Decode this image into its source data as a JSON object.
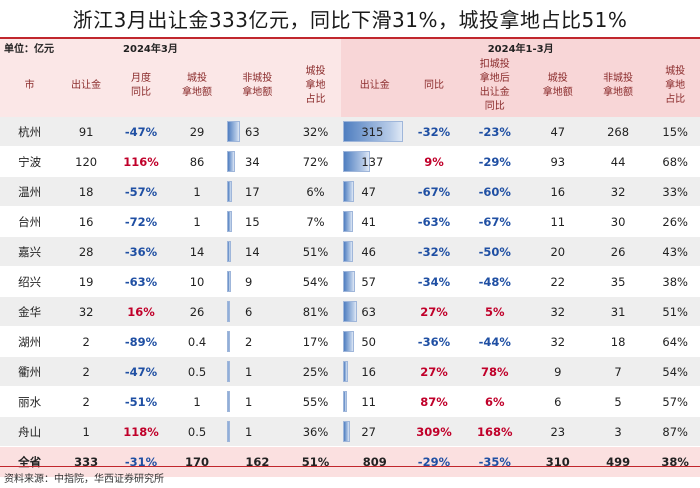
{
  "title": "浙江3月出让金333亿元，同比下滑31%，城投拿地占比51%",
  "unit_label": "单位：亿元",
  "period_march": "2024年3月",
  "period_q1": "2024年1-3月",
  "headers": [
    "市",
    "出让金",
    "月度\n同比",
    "城投\n拿地额",
    "非城投\n拿地额",
    "城投\n拿地\n占比",
    "出让金",
    "同比",
    "扣城投\n拿地后\n出让金\n同比",
    "城投\n拿地额",
    "非城投\n拿地额",
    "城投\n拿地\n占比"
  ],
  "bar_max": 315,
  "rows": [
    {
      "city": "杭州",
      "m_amt": "91",
      "m_yoy": "-47%",
      "m_ct": "29",
      "m_nct": "63",
      "m_share": "32%",
      "q_amt": "315",
      "q_yoy": "-32%",
      "q_ex_yoy": "-23%",
      "q_ct": "47",
      "q_nct": "268",
      "q_share": "15%",
      "m_nct_val": 63,
      "q_amt_val": 315
    },
    {
      "city": "宁波",
      "m_amt": "120",
      "m_yoy": "116%",
      "m_ct": "86",
      "m_nct": "34",
      "m_share": "72%",
      "q_amt": "137",
      "q_yoy": "9%",
      "q_ex_yoy": "-29%",
      "q_ct": "93",
      "q_nct": "44",
      "q_share": "68%",
      "m_nct_val": 34,
      "q_amt_val": 137
    },
    {
      "city": "温州",
      "m_amt": "18",
      "m_yoy": "-57%",
      "m_ct": "1",
      "m_nct": "17",
      "m_share": "6%",
      "q_amt": "47",
      "q_yoy": "-67%",
      "q_ex_yoy": "-60%",
      "q_ct": "16",
      "q_nct": "32",
      "q_share": "33%",
      "m_nct_val": 17,
      "q_amt_val": 47
    },
    {
      "city": "台州",
      "m_amt": "16",
      "m_yoy": "-72%",
      "m_ct": "1",
      "m_nct": "15",
      "m_share": "7%",
      "q_amt": "41",
      "q_yoy": "-63%",
      "q_ex_yoy": "-67%",
      "q_ct": "11",
      "q_nct": "30",
      "q_share": "26%",
      "m_nct_val": 15,
      "q_amt_val": 41
    },
    {
      "city": "嘉兴",
      "m_amt": "28",
      "m_yoy": "-36%",
      "m_ct": "14",
      "m_nct": "14",
      "m_share": "51%",
      "q_amt": "46",
      "q_yoy": "-32%",
      "q_ex_yoy": "-50%",
      "q_ct": "20",
      "q_nct": "26",
      "q_share": "43%",
      "m_nct_val": 14,
      "q_amt_val": 46
    },
    {
      "city": "绍兴",
      "m_amt": "19",
      "m_yoy": "-63%",
      "m_ct": "10",
      "m_nct": "9",
      "m_share": "54%",
      "q_amt": "57",
      "q_yoy": "-34%",
      "q_ex_yoy": "-48%",
      "q_ct": "22",
      "q_nct": "35",
      "q_share": "38%",
      "m_nct_val": 9,
      "q_amt_val": 57
    },
    {
      "city": "金华",
      "m_amt": "32",
      "m_yoy": "16%",
      "m_ct": "26",
      "m_nct": "6",
      "m_share": "81%",
      "q_amt": "63",
      "q_yoy": "27%",
      "q_ex_yoy": "5%",
      "q_ct": "32",
      "q_nct": "31",
      "q_share": "51%",
      "m_nct_val": 6,
      "q_amt_val": 63
    },
    {
      "city": "湖州",
      "m_amt": "2",
      "m_yoy": "-89%",
      "m_ct": "0.4",
      "m_nct": "2",
      "m_share": "17%",
      "q_amt": "50",
      "q_yoy": "-36%",
      "q_ex_yoy": "-44%",
      "q_ct": "32",
      "q_nct": "18",
      "q_share": "64%",
      "m_nct_val": 2,
      "q_amt_val": 50
    },
    {
      "city": "衢州",
      "m_amt": "2",
      "m_yoy": "-47%",
      "m_ct": "0.5",
      "m_nct": "1",
      "m_share": "25%",
      "q_amt": "16",
      "q_yoy": "27%",
      "q_ex_yoy": "78%",
      "q_ct": "9",
      "q_nct": "7",
      "q_share": "54%",
      "m_nct_val": 1,
      "q_amt_val": 16
    },
    {
      "city": "丽水",
      "m_amt": "2",
      "m_yoy": "-51%",
      "m_ct": "1",
      "m_nct": "1",
      "m_share": "55%",
      "q_amt": "11",
      "q_yoy": "87%",
      "q_ex_yoy": "6%",
      "q_ct": "6",
      "q_nct": "5",
      "q_share": "57%",
      "m_nct_val": 1,
      "q_amt_val": 11
    },
    {
      "city": "舟山",
      "m_amt": "1",
      "m_yoy": "118%",
      "m_ct": "0.5",
      "m_nct": "1",
      "m_share": "36%",
      "q_amt": "27",
      "q_yoy": "309%",
      "q_ex_yoy": "168%",
      "q_ct": "23",
      "q_nct": "3",
      "q_share": "87%",
      "m_nct_val": 1,
      "q_amt_val": 27
    }
  ],
  "total": {
    "city": "全省",
    "m_amt": "333",
    "m_yoy": "-31%",
    "m_ct": "170",
    "m_nct": "162",
    "m_share": "51%",
    "q_amt": "809",
    "q_yoy": "-29%",
    "q_ex_yoy": "-35%",
    "q_ct": "310",
    "q_nct": "499",
    "q_share": "38%"
  },
  "source": "资料来源：中指院，华西证券研究所",
  "colors": {
    "rule": "#c1272d",
    "positive": "#c0002a",
    "negative": "#1f4fa3",
    "header_text": "#8a2b2b",
    "bar": "#4f7ec0"
  }
}
